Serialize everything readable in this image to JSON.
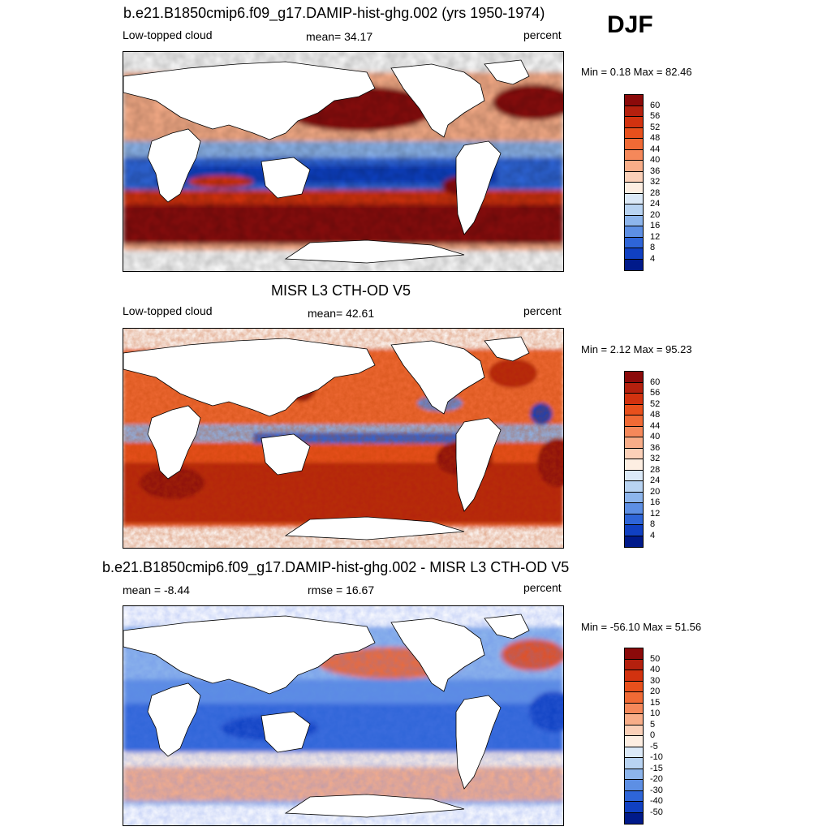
{
  "season": "DJF",
  "panels": [
    {
      "title": "b.e21.B1850cmip6.f09_g17.DAMIP-hist-ghg.002 (yrs 1950-1974)",
      "left_label": "Low-topped cloud",
      "center_label": "mean=  34.17",
      "right_label": "percent",
      "minmax": "Min =   0.18 Max =  82.46",
      "colorbar": {
        "levels": [
          "60",
          "56",
          "52",
          "48",
          "44",
          "40",
          "36",
          "32",
          "28",
          "24",
          "20",
          "16",
          "12",
          "8",
          "4"
        ],
        "colors": [
          "#8b0a0a",
          "#b4200e",
          "#d2320f",
          "#e8501c",
          "#f06a35",
          "#f5885a",
          "#f8ad88",
          "#fbd0b8",
          "#fdeee2",
          "#dbe9f8",
          "#b8d3f2",
          "#8db5ec",
          "#5d8fe4",
          "#2e65d8",
          "#1040c2",
          "#001a8a"
        ]
      },
      "map_type": "model"
    },
    {
      "title": "MISR L3 CTH-OD V5",
      "left_label": "Low-topped cloud",
      "center_label": "mean=  42.61",
      "right_label": "percent",
      "minmax": "Min =   2.12 Max =  95.23",
      "colorbar": {
        "levels": [
          "60",
          "56",
          "52",
          "48",
          "44",
          "40",
          "36",
          "32",
          "28",
          "24",
          "20",
          "16",
          "12",
          "8",
          "4"
        ],
        "colors": [
          "#8b0a0a",
          "#b4200e",
          "#d2320f",
          "#e8501c",
          "#f06a35",
          "#f5885a",
          "#f8ad88",
          "#fbd0b8",
          "#fdeee2",
          "#dbe9f8",
          "#b8d3f2",
          "#8db5ec",
          "#5d8fe4",
          "#2e65d8",
          "#1040c2",
          "#001a8a"
        ]
      },
      "map_type": "obs"
    },
    {
      "title": "b.e21.B1850cmip6.f09_g17.DAMIP-hist-ghg.002 - MISR L3 CTH-OD V5",
      "left_label": "mean =  -8.44",
      "center_label": "rmse =  16.67",
      "right_label": "percent",
      "minmax": "Min = -56.10 Max =  51.56",
      "colorbar": {
        "levels": [
          "50",
          "40",
          "30",
          "20",
          "15",
          "10",
          "5",
          "0",
          "-5",
          "-10",
          "-15",
          "-20",
          "-30",
          "-40",
          "-50"
        ],
        "colors": [
          "#8b0a0a",
          "#b4200e",
          "#d2320f",
          "#e8501c",
          "#f06a35",
          "#f5885a",
          "#f8ad88",
          "#fbd0b8",
          "#fdeee2",
          "#dbe9f8",
          "#b8d3f2",
          "#8db5ec",
          "#5d8fe4",
          "#2e65d8",
          "#1040c2",
          "#001a8a"
        ]
      },
      "map_type": "diff"
    }
  ]
}
